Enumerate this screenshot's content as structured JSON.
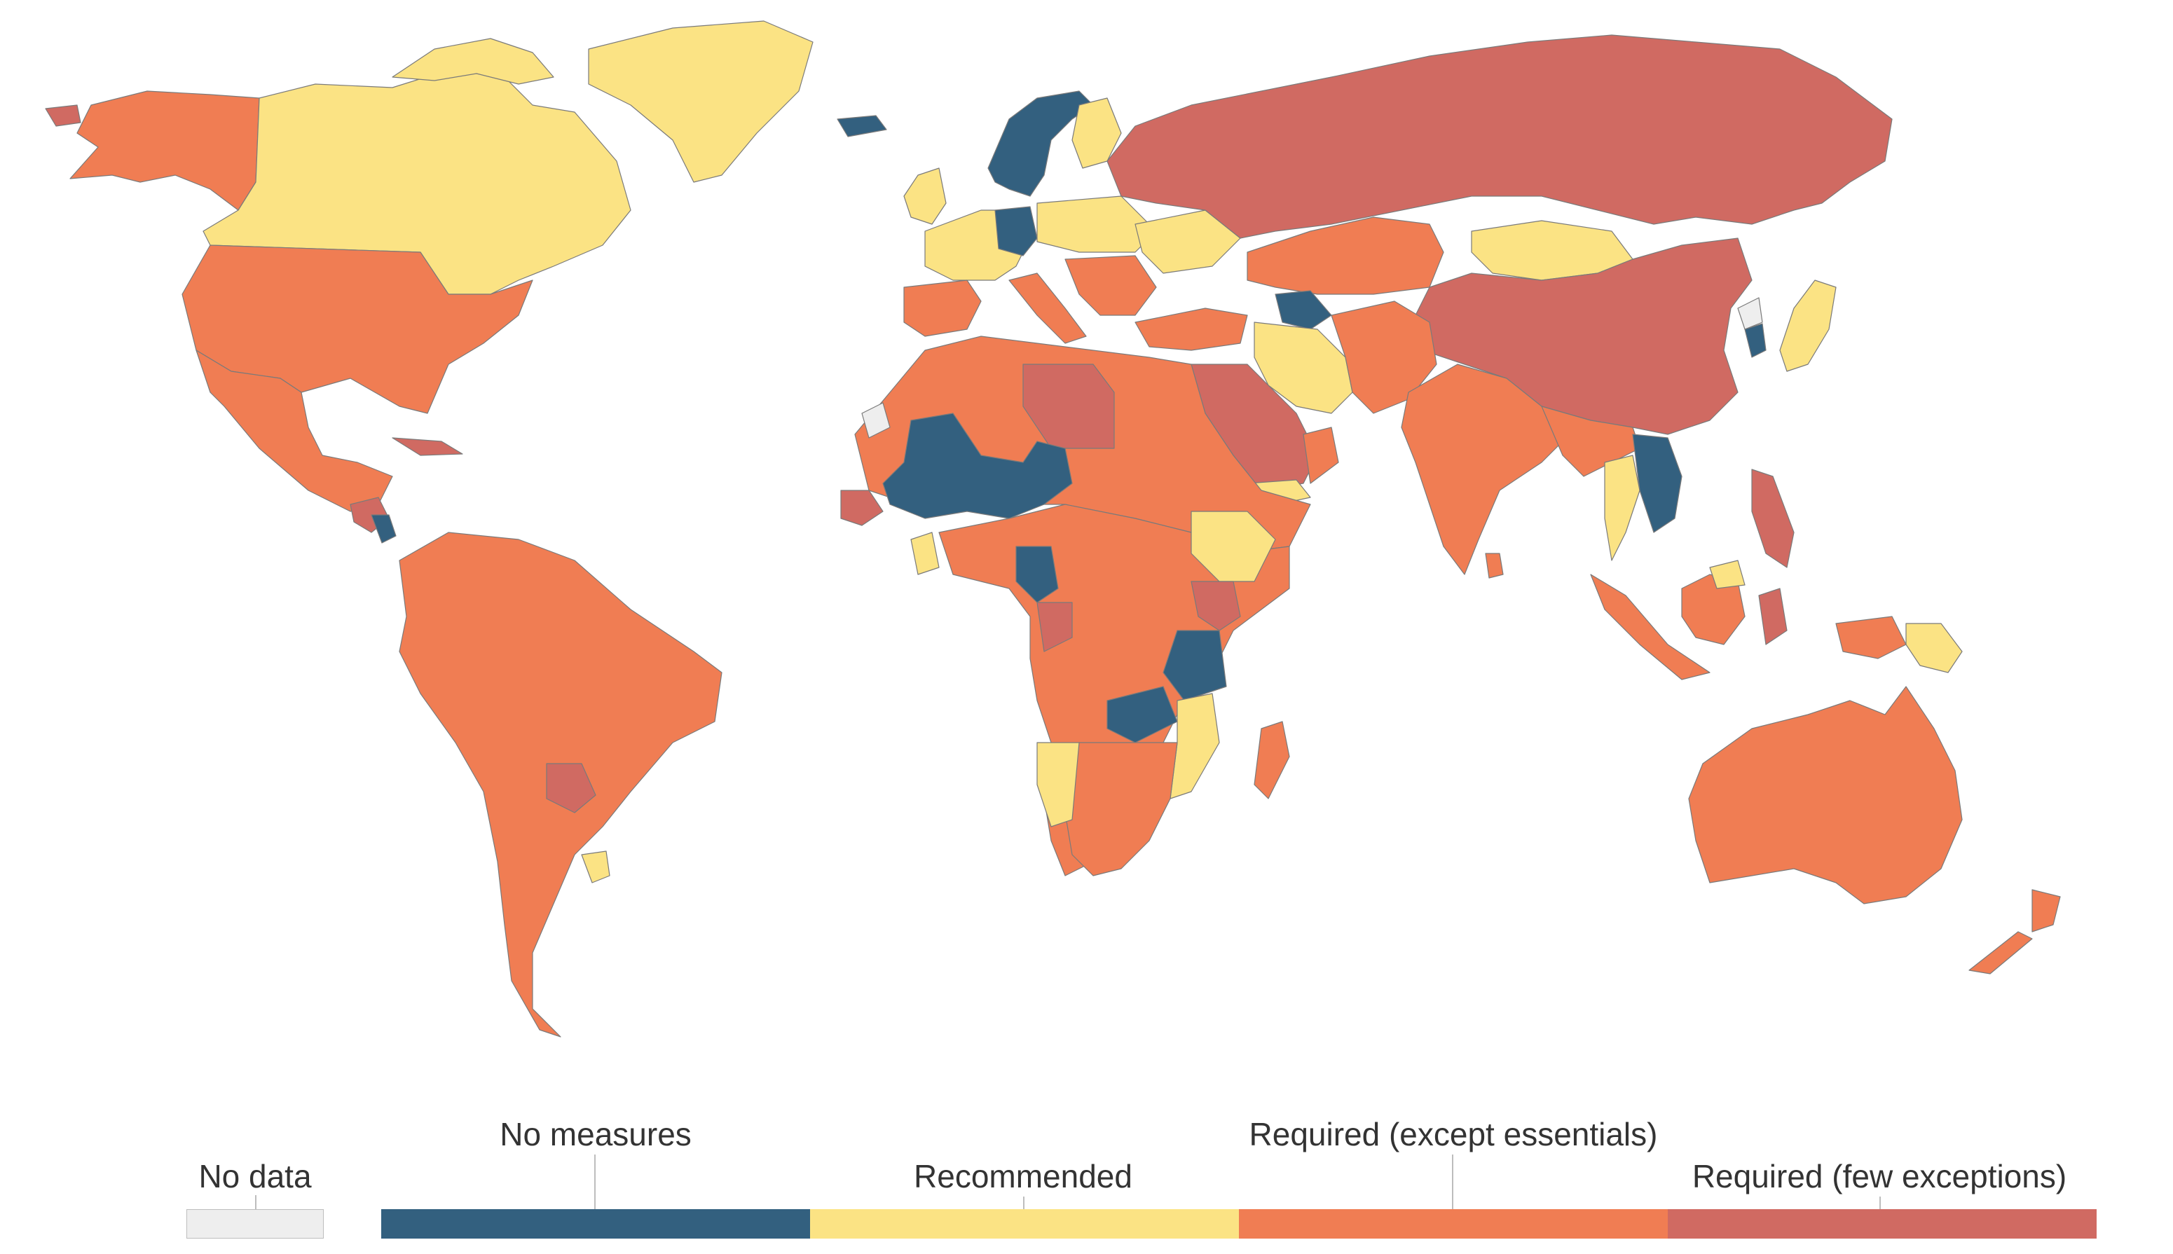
{
  "legend": {
    "no_data": {
      "label": "No data",
      "color": "#eeeeee"
    },
    "categories": [
      {
        "key": "none",
        "label": "No measures",
        "color": "#33607f"
      },
      {
        "key": "rec",
        "label": "Recommended",
        "color": "#fbe384"
      },
      {
        "key": "req",
        "label": "Required (except essentials)",
        "color": "#f07d53"
      },
      {
        "key": "few",
        "label": "Required (few exceptions)",
        "color": "#d06a62"
      }
    ]
  },
  "map": {
    "regions": [
      {
        "id": "alaska",
        "category": "req"
      },
      {
        "id": "alaska-tip",
        "category": "few"
      },
      {
        "id": "canada",
        "category": "rec"
      },
      {
        "id": "canada-north",
        "category": "rec"
      },
      {
        "id": "greenland",
        "category": "rec"
      },
      {
        "id": "usa",
        "category": "req"
      },
      {
        "id": "mexico",
        "category": "req"
      },
      {
        "id": "central-america-few",
        "category": "few"
      },
      {
        "id": "nicaragua",
        "category": "none"
      },
      {
        "id": "cuba",
        "category": "few"
      },
      {
        "id": "south-america",
        "category": "req"
      },
      {
        "id": "paraguay",
        "category": "few"
      },
      {
        "id": "uruguay",
        "category": "rec"
      },
      {
        "id": "iceland",
        "category": "none"
      },
      {
        "id": "norway-sweden",
        "category": "none"
      },
      {
        "id": "finland",
        "category": "rec"
      },
      {
        "id": "uk-ireland",
        "category": "rec"
      },
      {
        "id": "europe-west",
        "category": "rec"
      },
      {
        "id": "germany",
        "category": "none"
      },
      {
        "id": "poland",
        "category": "rec"
      },
      {
        "id": "italy",
        "category": "req"
      },
      {
        "id": "iberia",
        "category": "req"
      },
      {
        "id": "balkans",
        "category": "req"
      },
      {
        "id": "ukraine",
        "category": "rec"
      },
      {
        "id": "turkey",
        "category": "req"
      },
      {
        "id": "russia",
        "category": "few"
      },
      {
        "id": "kazakhstan",
        "category": "req"
      },
      {
        "id": "mongolia",
        "category": "rec"
      },
      {
        "id": "china",
        "category": "few"
      },
      {
        "id": "turkmenistan",
        "category": "none"
      },
      {
        "id": "iran",
        "category": "rec"
      },
      {
        "id": "afghanistan-pakistan",
        "category": "req"
      },
      {
        "id": "india",
        "category": "req"
      },
      {
        "id": "arabia",
        "category": "few"
      },
      {
        "id": "yemen",
        "category": "rec"
      },
      {
        "id": "oman",
        "category": "req"
      },
      {
        "id": "korea-north",
        "category": "no-data"
      },
      {
        "id": "korea-south",
        "category": "none"
      },
      {
        "id": "japan",
        "category": "rec"
      },
      {
        "id": "mainland-se-asia",
        "category": "req"
      },
      {
        "id": "thailand",
        "category": "rec"
      },
      {
        "id": "laos-vietnam",
        "category": "none"
      },
      {
        "id": "philippines",
        "category": "few"
      },
      {
        "id": "sumatra",
        "category": "req"
      },
      {
        "id": "borneo",
        "category": "req"
      },
      {
        "id": "borneo-north",
        "category": "rec"
      },
      {
        "id": "sulawesi",
        "category": "few"
      },
      {
        "id": "papua",
        "category": "req"
      },
      {
        "id": "png",
        "category": "rec"
      },
      {
        "id": "australia",
        "category": "req"
      },
      {
        "id": "new-zealand-n",
        "category": "req"
      },
      {
        "id": "new-zealand-s",
        "category": "req"
      },
      {
        "id": "sri-lanka",
        "category": "req"
      },
      {
        "id": "north-africa",
        "category": "req"
      },
      {
        "id": "western-sahara",
        "category": "no-data"
      },
      {
        "id": "libya",
        "category": "few"
      },
      {
        "id": "sahel-none",
        "category": "none"
      },
      {
        "id": "west-africa-few",
        "category": "few"
      },
      {
        "id": "ghana",
        "category": "rec"
      },
      {
        "id": "central-africa",
        "category": "req"
      },
      {
        "id": "cameroon-none",
        "category": "none"
      },
      {
        "id": "congo-few",
        "category": "few"
      },
      {
        "id": "ethiopia",
        "category": "rec"
      },
      {
        "id": "kenya",
        "category": "few"
      },
      {
        "id": "tanzania",
        "category": "none"
      },
      {
        "id": "zambia",
        "category": "none"
      },
      {
        "id": "mozambique",
        "category": "rec"
      },
      {
        "id": "southern-africa",
        "category": "req"
      },
      {
        "id": "namibia",
        "category": "rec"
      },
      {
        "id": "madagascar",
        "category": "req"
      }
    ]
  }
}
